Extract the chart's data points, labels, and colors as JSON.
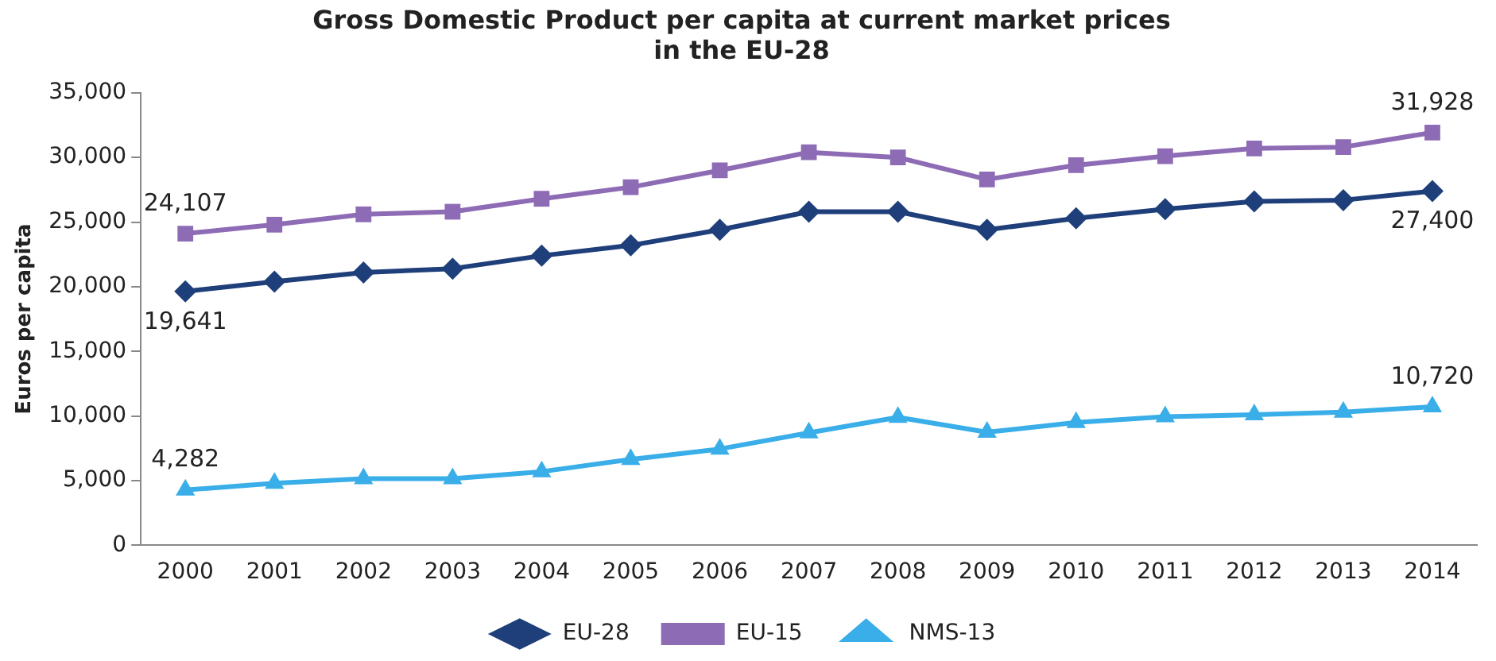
{
  "chart_data": {
    "type": "line",
    "title": "Gross Domestic Product per capita at current market prices\nin the EU-28",
    "ylabel": "Euros per capita",
    "categories": [
      "2000",
      "2001",
      "2002",
      "2003",
      "2004",
      "2005",
      "2006",
      "2007",
      "2008",
      "2009",
      "2010",
      "2011",
      "2012",
      "2013",
      "2014"
    ],
    "series": [
      {
        "name": "EU-28",
        "color": "#1f3f7a",
        "marker": "diamond",
        "values": [
          19641,
          20400,
          21100,
          21400,
          22400,
          23200,
          24400,
          25800,
          25800,
          24400,
          25300,
          26000,
          26600,
          26700,
          27400
        ],
        "value_labels": [
          "19,641",
          null,
          null,
          null,
          null,
          null,
          null,
          null,
          null,
          null,
          null,
          null,
          null,
          null,
          "27,400"
        ]
      },
      {
        "name": "EU-15",
        "color": "#8e6bb5",
        "marker": "square",
        "values": [
          24107,
          24800,
          25600,
          25800,
          26800,
          27700,
          29000,
          30400,
          30000,
          28300,
          29400,
          30100,
          30700,
          30800,
          31928
        ],
        "value_labels": [
          "24,107",
          null,
          null,
          null,
          null,
          null,
          null,
          null,
          null,
          null,
          null,
          null,
          null,
          null,
          "31,928"
        ]
      },
      {
        "name": "NMS-13",
        "color": "#3aaee8",
        "marker": "triangle",
        "values": [
          4282,
          4800,
          5150,
          5150,
          5700,
          6650,
          7450,
          8700,
          9900,
          8750,
          9500,
          9950,
          10100,
          10300,
          10720
        ],
        "value_labels": [
          "4,282",
          null,
          null,
          null,
          null,
          null,
          null,
          null,
          null,
          null,
          null,
          null,
          null,
          null,
          "10,720"
        ]
      }
    ],
    "ylim": [
      0,
      35000
    ],
    "yticks": [
      {
        "value": 0,
        "label": "0"
      },
      {
        "value": 5000,
        "label": "5,000"
      },
      {
        "value": 10000,
        "label": "10,000"
      },
      {
        "value": 15000,
        "label": "15,000"
      },
      {
        "value": 20000,
        "label": "20,000"
      },
      {
        "value": 25000,
        "label": "25,000"
      },
      {
        "value": 30000,
        "label": "30,000"
      },
      {
        "value": 35000,
        "label": "35,000"
      }
    ],
    "grid": false,
    "legend": "bottom",
    "line_style": "solid"
  }
}
